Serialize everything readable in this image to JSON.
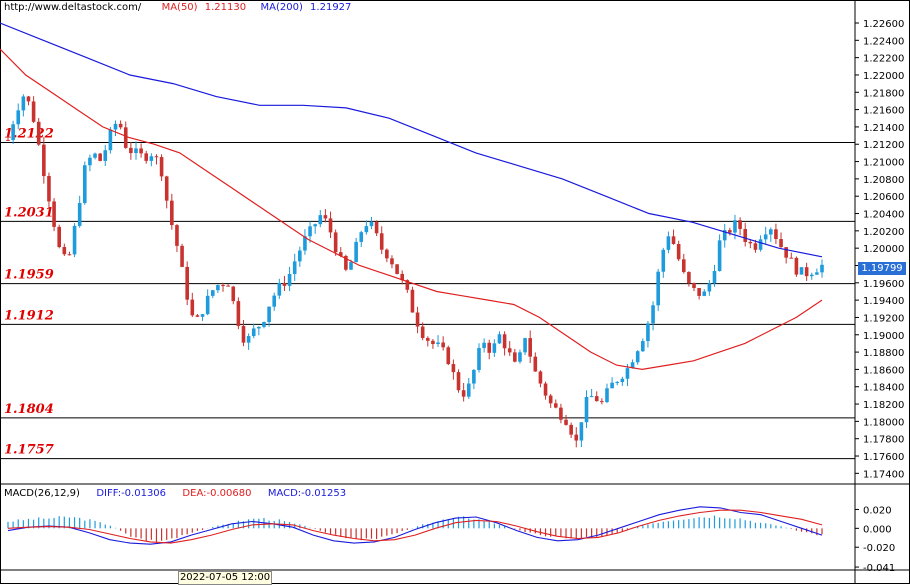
{
  "header": {
    "url": "http://www.deltastock.com/",
    "ma50_label": "MA(50)",
    "ma50_value": "1.21130",
    "ma200_label": "MA(200)",
    "ma200_value": "1.21927"
  },
  "macd_header": {
    "name": "MACD(26,12,9)",
    "diff": "DIFF:-0.01306",
    "dea": "DEA:-0.00680",
    "macd": "MACD:-0.01253"
  },
  "current_price": "1.19799",
  "time_label": "2022-07-05 12:00",
  "colors": {
    "up": "#1e9bdc",
    "down": "#c8322f",
    "ma50": "#e02020",
    "ma200": "#1a1adc",
    "level_text": "#e00000",
    "price_tag": "#2a6fd6"
  },
  "chart_data": [
    {
      "type": "candlestick",
      "ylim": [
        1.173,
        1.2275
      ],
      "y_ticks": [
        "1.22600",
        "1.22400",
        "1.22200",
        "1.22000",
        "1.21800",
        "1.21600",
        "1.21400",
        "1.21200",
        "1.21000",
        "1.20800",
        "1.20600",
        "1.20400",
        "1.20200",
        "1.20000",
        "1.19800",
        "1.19600",
        "1.19400",
        "1.19200",
        "1.19000",
        "1.18800",
        "1.18600",
        "1.18400",
        "1.18200",
        "1.18000",
        "1.17800",
        "1.17600",
        "1.17400"
      ],
      "levels": [
        "1.2122",
        "1.2031",
        "1.1959",
        "1.1912",
        "1.1804",
        "1.1757"
      ],
      "close_series": [
        1.2125,
        1.216,
        1.218,
        1.215,
        1.21,
        1.205,
        1.2,
        1.198,
        1.203,
        1.209,
        1.211,
        1.21,
        1.213,
        1.215,
        1.2115,
        1.211,
        1.2105,
        1.211,
        1.2095,
        1.204,
        1.2,
        1.195,
        1.191,
        1.193,
        1.195,
        1.196,
        1.196,
        1.192,
        1.189,
        1.1905,
        1.1915,
        1.194,
        1.1955,
        1.1965,
        1.199,
        1.201,
        1.2025,
        1.204,
        1.202,
        1.199,
        1.197,
        1.2,
        1.203,
        1.2025,
        1.2,
        1.199,
        1.197,
        1.195,
        1.192,
        1.19,
        1.189,
        1.1885,
        1.187,
        1.184,
        1.183,
        1.186,
        1.1895,
        1.188,
        1.19,
        1.188,
        1.186,
        1.19,
        1.186,
        1.184,
        1.182,
        1.181,
        1.18,
        1.1775,
        1.182,
        1.183,
        1.182,
        1.184,
        1.185,
        1.186,
        1.188,
        1.19,
        1.193,
        1.199,
        1.202,
        1.199,
        1.196,
        1.195,
        1.1945,
        1.1965,
        1.201,
        1.202,
        1.203,
        1.201,
        1.2,
        1.202,
        1.2025,
        1.2005,
        1.199,
        1.1975,
        1.197,
        1.1975,
        1.198
      ],
      "ma50_series": [
        1.223,
        1.22,
        1.218,
        1.216,
        1.214,
        1.2128,
        1.212,
        1.211,
        1.209,
        1.207,
        1.205,
        1.203,
        1.201,
        1.1995,
        1.198,
        1.197,
        1.196,
        1.195,
        1.1945,
        1.194,
        1.1935,
        1.192,
        1.19,
        1.188,
        1.1865,
        1.186,
        1.1865,
        1.187,
        1.188,
        1.189,
        1.1905,
        1.192,
        1.194
      ],
      "ma200_series": [
        1.226,
        1.224,
        1.222,
        1.22,
        1.219,
        1.2175,
        1.2165,
        1.2165,
        1.2162,
        1.215,
        1.213,
        1.211,
        1.2095,
        1.208,
        1.206,
        1.204,
        1.203,
        1.2015,
        1.2,
        1.199
      ],
      "legend": [
        {
          "name": "MA(50)",
          "value": "1.21130"
        },
        {
          "name": "MA(200)",
          "value": "1.21927"
        }
      ]
    },
    {
      "type": "bar",
      "name": "MACD(26,12,9)",
      "ylim": [
        -0.042,
        0.03
      ],
      "y_ticks": [
        "0.020",
        "0.000",
        "-0.020",
        "-0.041"
      ],
      "diff": -0.01306,
      "dea": -0.0068,
      "macd": -0.01253
    }
  ]
}
